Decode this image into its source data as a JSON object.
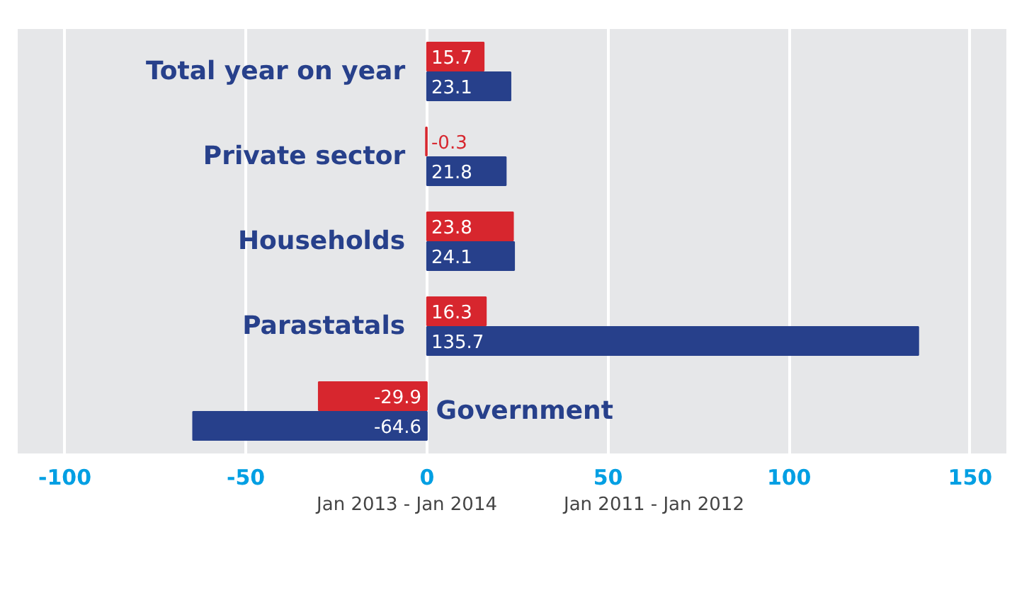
{
  "chart_data": {
    "type": "bar",
    "orientation": "horizontal",
    "categories": [
      "Total year on year",
      "Private sector",
      "Households",
      "Parastatals",
      "Government"
    ],
    "series": [
      {
        "name": "Jan 2013 - Jan 2014",
        "color": "#d7262e",
        "values": [
          15.7,
          -0.3,
          23.8,
          16.3,
          -29.9
        ]
      },
      {
        "name": "Jan 2011 - Jan 2012",
        "color": "#27408b",
        "values": [
          23.1,
          21.8,
          24.1,
          135.7,
          -64.6
        ]
      }
    ],
    "xlim": [
      -113,
      160
    ],
    "xticks": [
      -100,
      -50,
      0,
      50,
      100,
      150
    ],
    "grid": "x",
    "legend": "bottom",
    "data_labels": true
  }
}
